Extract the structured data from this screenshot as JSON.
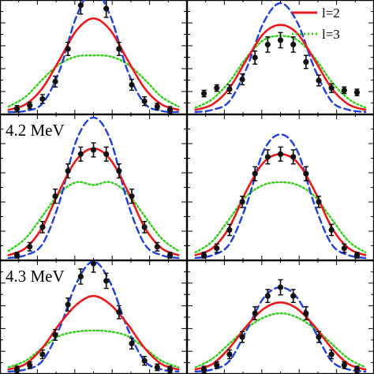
{
  "figure": {
    "legend": [
      {
        "label": "l=2",
        "color": "#e8191c",
        "style": "solid"
      },
      {
        "label": "l=3",
        "color": "#33cc1a",
        "style": "dotted"
      }
    ]
  },
  "chart_data": [
    {
      "type": "line",
      "panel": "top-left",
      "label": "",
      "x": [
        -1.0,
        -0.8,
        -0.6,
        -0.4,
        -0.2,
        0.0,
        0.2,
        0.4,
        0.6,
        0.8,
        1.0
      ],
      "series": [
        {
          "name": "l=2",
          "color": "#e8191c",
          "style": "solid",
          "values": [
            0.02,
            0.07,
            0.22,
            0.48,
            0.75,
            0.86,
            0.75,
            0.48,
            0.22,
            0.07,
            0.02
          ]
        },
        {
          "name": "l=3",
          "color": "#33cc1a",
          "style": "dotted",
          "values": [
            0.05,
            0.14,
            0.3,
            0.44,
            0.51,
            0.52,
            0.51,
            0.44,
            0.3,
            0.14,
            0.05
          ]
        },
        {
          "name": "",
          "color": "#1f3fd6",
          "style": "dashed",
          "values": [
            0.0,
            0.01,
            0.08,
            0.38,
            0.88,
            1.12,
            0.88,
            0.38,
            0.08,
            0.01,
            0.0
          ]
        }
      ],
      "points": {
        "x": [
          -0.9,
          -0.75,
          -0.6,
          -0.45,
          -0.3,
          -0.15,
          0.0,
          0.15,
          0.3,
          0.45,
          0.6,
          0.75,
          0.9
        ],
        "y": [
          0.03,
          0.06,
          0.12,
          0.28,
          0.58,
          0.98,
          1.14,
          0.95,
          0.58,
          0.25,
          0.1,
          0.05,
          0.02
        ],
        "err": [
          0.03,
          0.03,
          0.04,
          0.05,
          0.06,
          0.08,
          0.09,
          0.08,
          0.06,
          0.05,
          0.04,
          0.03,
          0.03
        ]
      },
      "ylim": [
        0,
        1.0
      ],
      "xlim": [
        -1.1,
        1.1
      ]
    },
    {
      "type": "line",
      "panel": "top-right",
      "label": "",
      "x": [
        -1.0,
        -0.8,
        -0.6,
        -0.4,
        -0.2,
        0.0,
        0.2,
        0.4,
        0.6,
        0.8,
        1.0
      ],
      "series": [
        {
          "name": "l=2",
          "color": "#e8191c",
          "style": "solid",
          "values": [
            0.02,
            0.07,
            0.22,
            0.48,
            0.72,
            0.8,
            0.72,
            0.48,
            0.22,
            0.07,
            0.02
          ]
        },
        {
          "name": "l=3",
          "color": "#33cc1a",
          "style": "dotted",
          "values": [
            0.04,
            0.12,
            0.28,
            0.5,
            0.66,
            0.7,
            0.66,
            0.5,
            0.28,
            0.12,
            0.04
          ]
        },
        {
          "name": "",
          "color": "#1f3fd6",
          "style": "dashed",
          "values": [
            0.0,
            0.02,
            0.1,
            0.4,
            0.82,
            1.0,
            0.82,
            0.4,
            0.1,
            0.02,
            0.0
          ]
        }
      ],
      "points": {
        "x": [
          -0.9,
          -0.75,
          -0.6,
          -0.45,
          -0.3,
          -0.15,
          0.0,
          0.15,
          0.3,
          0.45,
          0.6,
          0.75,
          0.9
        ],
        "y": [
          0.17,
          0.22,
          0.21,
          0.3,
          0.5,
          0.62,
          0.66,
          0.62,
          0.46,
          0.29,
          0.22,
          0.2,
          0.18
        ],
        "err": [
          0.03,
          0.03,
          0.04,
          0.05,
          0.06,
          0.07,
          0.07,
          0.07,
          0.06,
          0.05,
          0.04,
          0.03,
          0.03
        ]
      },
      "ylim": [
        0,
        1.0
      ],
      "xlim": [
        -1.1,
        1.1
      ]
    },
    {
      "type": "line",
      "panel": "middle-left",
      "label": "4.2 MeV",
      "x": [
        -1.0,
        -0.8,
        -0.6,
        -0.4,
        -0.2,
        0.0,
        0.2,
        0.4,
        0.6,
        0.8,
        1.0
      ],
      "series": [
        {
          "name": "l=2",
          "color": "#e8191c",
          "style": "solid",
          "values": [
            0.02,
            0.07,
            0.22,
            0.48,
            0.7,
            0.78,
            0.7,
            0.48,
            0.22,
            0.07,
            0.02
          ]
        },
        {
          "name": "l=3",
          "color": "#33cc1a",
          "style": "dotted",
          "values": [
            0.05,
            0.14,
            0.3,
            0.46,
            0.54,
            0.52,
            0.54,
            0.46,
            0.3,
            0.14,
            0.05
          ]
        },
        {
          "name": "",
          "color": "#1f3fd6",
          "style": "dashed",
          "values": [
            0.0,
            0.02,
            0.1,
            0.4,
            0.84,
            1.0,
            0.84,
            0.4,
            0.1,
            0.02,
            0.0
          ]
        }
      ],
      "points": {
        "x": [
          -0.9,
          -0.75,
          -0.6,
          -0.45,
          -0.3,
          -0.15,
          0.0,
          0.15,
          0.3,
          0.45,
          0.6,
          0.75,
          0.9
        ],
        "y": [
          0.02,
          0.08,
          0.22,
          0.44,
          0.62,
          0.74,
          0.77,
          0.74,
          0.62,
          0.44,
          0.22,
          0.08,
          0.02
        ],
        "err": [
          0.02,
          0.03,
          0.04,
          0.05,
          0.05,
          0.05,
          0.05,
          0.05,
          0.05,
          0.05,
          0.04,
          0.03,
          0.02
        ]
      },
      "ylim": [
        0,
        1.0
      ],
      "xlim": [
        -1.1,
        1.1
      ]
    },
    {
      "type": "line",
      "panel": "middle-right",
      "label": "",
      "x": [
        -1.0,
        -0.8,
        -0.6,
        -0.4,
        -0.2,
        0.0,
        0.2,
        0.4,
        0.6,
        0.8,
        1.0
      ],
      "series": [
        {
          "name": "l=2",
          "color": "#e8191c",
          "style": "solid",
          "values": [
            0.02,
            0.07,
            0.22,
            0.48,
            0.68,
            0.74,
            0.68,
            0.48,
            0.22,
            0.07,
            0.02
          ]
        },
        {
          "name": "l=3",
          "color": "#33cc1a",
          "style": "dotted",
          "values": [
            0.04,
            0.12,
            0.28,
            0.44,
            0.52,
            0.54,
            0.52,
            0.44,
            0.28,
            0.12,
            0.04
          ]
        },
        {
          "name": "",
          "color": "#1f3fd6",
          "style": "dashed",
          "values": [
            0.0,
            0.02,
            0.1,
            0.38,
            0.76,
            0.88,
            0.76,
            0.38,
            0.1,
            0.02,
            0.0
          ]
        }
      ],
      "points": {
        "x": [
          -0.9,
          -0.75,
          -0.6,
          -0.45,
          -0.3,
          -0.15,
          0.0,
          0.15,
          0.3,
          0.45,
          0.6,
          0.75,
          0.9
        ],
        "y": [
          0.02,
          0.07,
          0.2,
          0.4,
          0.6,
          0.72,
          0.74,
          0.72,
          0.6,
          0.4,
          0.2,
          0.07,
          0.02
        ],
        "err": [
          0.02,
          0.03,
          0.04,
          0.04,
          0.05,
          0.05,
          0.05,
          0.05,
          0.05,
          0.04,
          0.04,
          0.03,
          0.02
        ]
      },
      "ylim": [
        0,
        1.0
      ],
      "xlim": [
        -1.1,
        1.1
      ]
    },
    {
      "type": "line",
      "panel": "bottom-left",
      "label": "4.3 MeV",
      "x": [
        -1.0,
        -0.8,
        -0.6,
        -0.4,
        -0.2,
        0.0,
        0.2,
        0.4,
        0.6,
        0.8,
        1.0
      ],
      "series": [
        {
          "name": "l=2",
          "color": "#e8191c",
          "style": "solid",
          "values": [
            0.02,
            0.07,
            0.22,
            0.44,
            0.62,
            0.7,
            0.62,
            0.44,
            0.22,
            0.07,
            0.02
          ]
        },
        {
          "name": "l=3",
          "color": "#33cc1a",
          "style": "dotted",
          "values": [
            0.04,
            0.1,
            0.22,
            0.33,
            0.37,
            0.38,
            0.37,
            0.33,
            0.22,
            0.1,
            0.04
          ]
        },
        {
          "name": "",
          "color": "#1f3fd6",
          "style": "dashed",
          "values": [
            0.0,
            0.02,
            0.1,
            0.4,
            0.82,
            1.02,
            0.82,
            0.4,
            0.1,
            0.02,
            0.0
          ]
        }
      ],
      "points": {
        "x": [
          -0.9,
          -0.75,
          -0.6,
          -0.45,
          -0.3,
          -0.15,
          0.0,
          0.15,
          0.3,
          0.45,
          0.6,
          0.75,
          0.9
        ],
        "y": [
          0.02,
          0.06,
          0.16,
          0.34,
          0.62,
          0.88,
          1.0,
          0.84,
          0.55,
          0.26,
          0.1,
          0.04,
          0.02
        ],
        "err": [
          0.03,
          0.03,
          0.04,
          0.05,
          0.06,
          0.07,
          0.08,
          0.07,
          0.06,
          0.05,
          0.04,
          0.03,
          0.03
        ]
      },
      "ylim": [
        0,
        1.0
      ],
      "xlim": [
        -1.1,
        1.1
      ]
    },
    {
      "type": "line",
      "panel": "bottom-right",
      "label": "",
      "x": [
        -1.0,
        -0.8,
        -0.6,
        -0.4,
        -0.2,
        0.0,
        0.2,
        0.4,
        0.6,
        0.8,
        1.0
      ],
      "series": [
        {
          "name": "l=2",
          "color": "#e8191c",
          "style": "solid",
          "values": [
            0.02,
            0.07,
            0.22,
            0.42,
            0.58,
            0.64,
            0.58,
            0.42,
            0.22,
            0.07,
            0.02
          ]
        },
        {
          "name": "l=3",
          "color": "#33cc1a",
          "style": "dotted",
          "values": [
            0.04,
            0.12,
            0.26,
            0.4,
            0.5,
            0.54,
            0.5,
            0.4,
            0.26,
            0.12,
            0.04
          ]
        },
        {
          "name": "",
          "color": "#1f3fd6",
          "style": "dashed",
          "values": [
            0.0,
            0.02,
            0.1,
            0.38,
            0.68,
            0.78,
            0.68,
            0.38,
            0.1,
            0.02,
            0.0
          ]
        }
      ],
      "points": {
        "x": [
          -0.9,
          -0.75,
          -0.6,
          -0.45,
          -0.3,
          -0.15,
          0.0,
          0.15,
          0.3,
          0.45,
          0.6,
          0.75,
          0.9
        ],
        "y": [
          0.02,
          0.06,
          0.16,
          0.32,
          0.54,
          0.7,
          0.78,
          0.7,
          0.54,
          0.32,
          0.16,
          0.06,
          0.02
        ],
        "err": [
          0.03,
          0.03,
          0.04,
          0.05,
          0.06,
          0.06,
          0.07,
          0.06,
          0.06,
          0.05,
          0.04,
          0.03,
          0.03
        ]
      },
      "ylim": [
        0,
        1.0
      ],
      "xlim": [
        -1.1,
        1.1
      ]
    }
  ]
}
